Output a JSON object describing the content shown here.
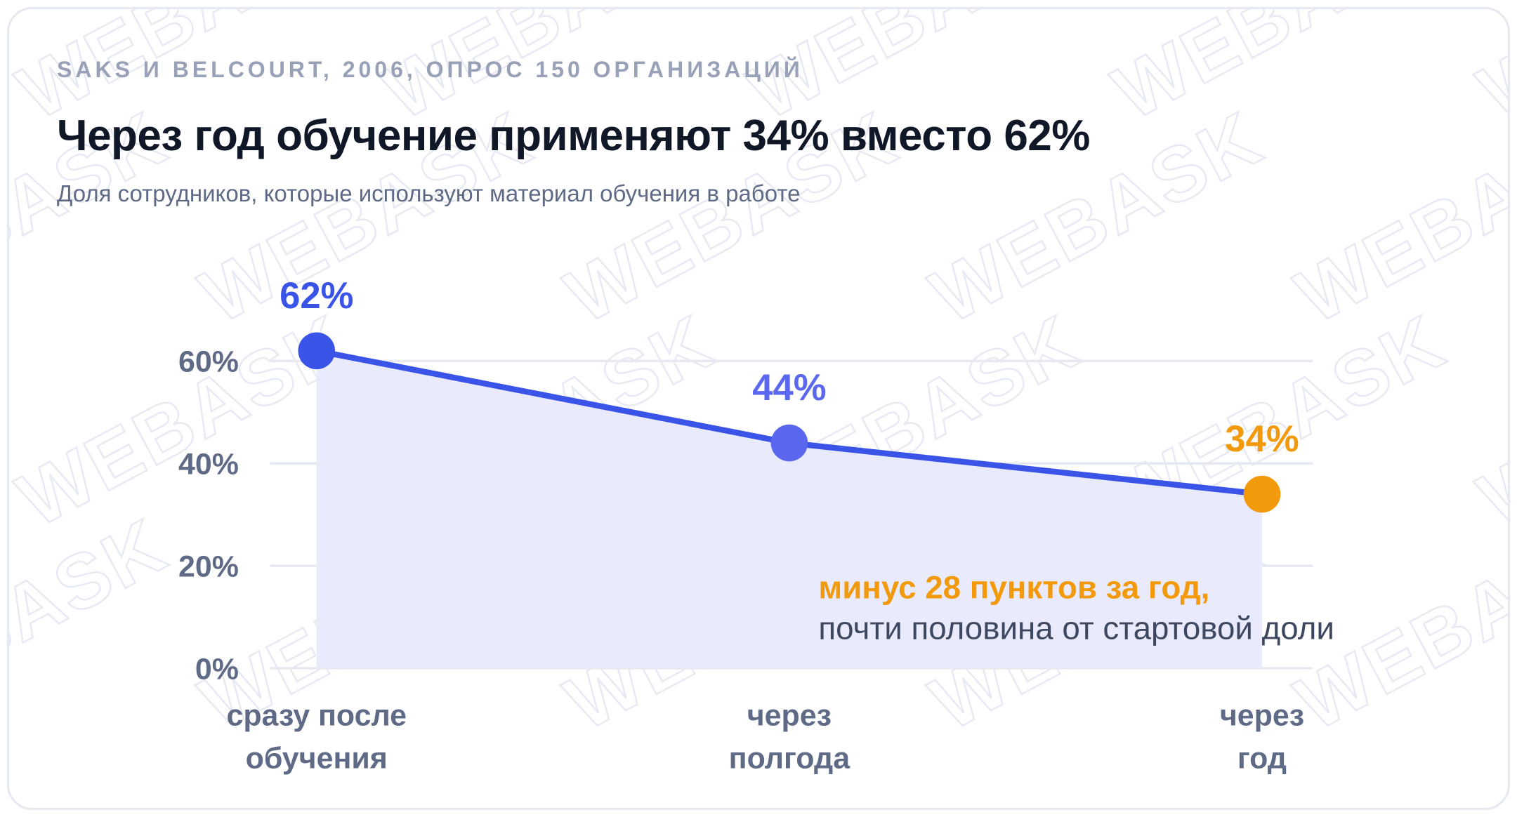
{
  "header": {
    "source": "SAKS И BELCOURT, 2006, ОПРОС 150 ОРГАНИЗАЦИЙ",
    "title": "Через год обучение применяют 34% вместо 62%",
    "subtitle": "Доля сотрудников, которые используют материал обучения в работе"
  },
  "watermark": "WEBASK",
  "chart_data": {
    "type": "area",
    "title": "Через год обучение применяют 34% вместо 62%",
    "subtitle": "Доля сотрудников, которые используют материал обучения в работе",
    "categories": [
      [
        "сразу после",
        "обучения"
      ],
      [
        "через",
        "полгода"
      ],
      [
        "через",
        "год"
      ]
    ],
    "values": [
      62,
      44,
      34
    ],
    "data_labels": [
      "62%",
      "44%",
      "34%"
    ],
    "point_colors": [
      "#3b54e8",
      "#5b67ee",
      "#f29a0c"
    ],
    "ylim": [
      0,
      60
    ],
    "yticks": [
      0,
      20,
      40,
      60
    ],
    "ytick_labels": [
      "0%",
      "20%",
      "40%",
      "60%"
    ],
    "grid": true,
    "colors": {
      "line": "#3b54e8",
      "area": "#e9ebfc",
      "grid": "#e6e9f0",
      "highlight": "#f29a0c"
    },
    "annotation": {
      "strong": "минус 28 пунктов за год,",
      "normal": "почти половина от стартовой доли"
    }
  }
}
